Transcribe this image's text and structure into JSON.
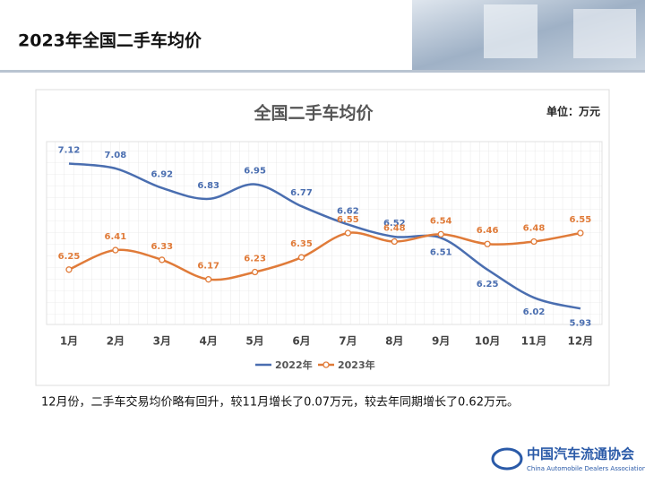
{
  "header": {
    "title": "2023年全国二手车均价"
  },
  "chart_data": {
    "type": "line",
    "title": "全国二手车均价",
    "unit": "单位：万元",
    "categories": [
      "1月",
      "2月",
      "3月",
      "4月",
      "5月",
      "6月",
      "7月",
      "8月",
      "9月",
      "10月",
      "11月",
      "12月"
    ],
    "series": [
      {
        "name": "2022年",
        "color": "#4a6eb0",
        "values": [
          7.12,
          7.08,
          6.92,
          6.83,
          6.95,
          6.77,
          6.62,
          6.52,
          6.51,
          6.25,
          6.02,
          5.93
        ]
      },
      {
        "name": "2023年",
        "color": "#e07b39",
        "values": [
          6.25,
          6.41,
          6.33,
          6.17,
          6.23,
          6.35,
          6.55,
          6.48,
          6.54,
          6.46,
          6.48,
          6.55
        ]
      }
    ],
    "ylim": [
      5.8,
      7.3
    ],
    "legend": "bottom"
  },
  "note": "12月份，二手车交易均价略有回升，较11月增长了0.07万元，较去年同期增长了0.62万元。",
  "logo": {
    "name": "中国汽车流通协会",
    "subtitle": "China Automobile Dealers Association"
  }
}
